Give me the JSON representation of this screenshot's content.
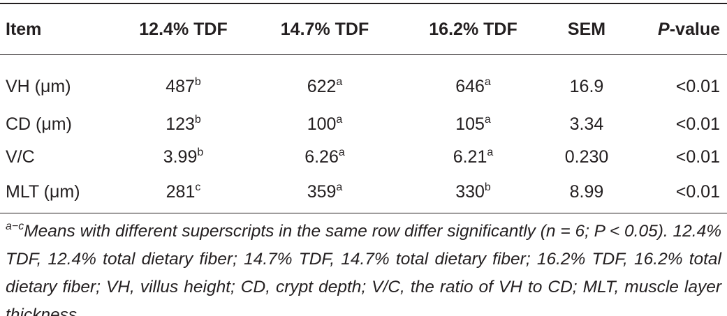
{
  "table": {
    "headers": [
      "Item",
      "12.4% TDF",
      "14.7% TDF",
      "16.2% TDF",
      "SEM",
      {
        "italic": "P",
        "text": "-value"
      }
    ],
    "rows": [
      [
        "VH (μm)",
        {
          "value": "487",
          "sup": "b"
        },
        {
          "value": "622",
          "sup": "a"
        },
        {
          "value": "646",
          "sup": "a"
        },
        "16.9",
        "<0.01"
      ],
      [
        "CD (μm)",
        {
          "value": "123",
          "sup": "b"
        },
        {
          "value": "100",
          "sup": "a"
        },
        {
          "value": "105",
          "sup": "a"
        },
        "3.34",
        "<0.01"
      ],
      [
        "V/C",
        {
          "value": "3.99",
          "sup": "b"
        },
        {
          "value": "6.26",
          "sup": "a"
        },
        {
          "value": "6.21",
          "sup": "a"
        },
        "0.230",
        "<0.01"
      ],
      [
        "MLT (μm)",
        {
          "value": "281",
          "sup": "c"
        },
        {
          "value": "359",
          "sup": "a"
        },
        {
          "value": "330",
          "sup": "b"
        },
        "8.99",
        "<0.01"
      ]
    ]
  },
  "footnote": {
    "sup": "a−c",
    "text": "Means with different superscripts in the same row differ significantly (n = 6; P < 0.05). 12.4% TDF, 12.4% total dietary fiber; 14.7% TDF, 14.7% total dietary fiber; 16.2% TDF, 16.2% total dietary fiber; VH, villus height; CD, crypt depth; V/C, the ratio of VH to CD; MLT, muscle layer thickness."
  }
}
